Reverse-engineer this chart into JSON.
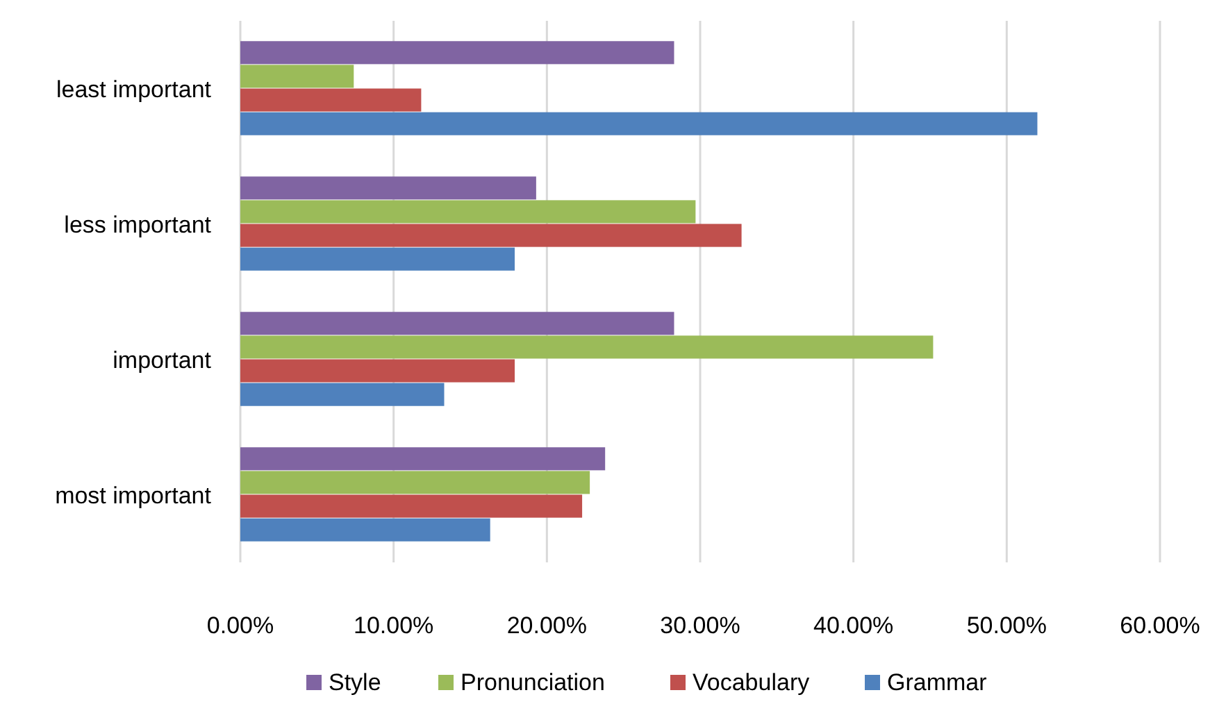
{
  "chart_data": {
    "type": "bar",
    "orientation": "horizontal",
    "categories": [
      "least important",
      "less important",
      "important",
      "most important"
    ],
    "series": [
      {
        "name": "Style",
        "color": "#8064a2",
        "values": [
          0.283,
          0.193,
          0.283,
          0.238
        ]
      },
      {
        "name": "Pronunciation",
        "color": "#9bbb59",
        "values": [
          0.074,
          0.297,
          0.452,
          0.228
        ]
      },
      {
        "name": "Vocabulary",
        "color": "#c0504d",
        "values": [
          0.118,
          0.327,
          0.179,
          0.223
        ]
      },
      {
        "name": "Grammar",
        "color": "#4f81bd",
        "values": [
          0.52,
          0.179,
          0.133,
          0.163
        ]
      }
    ],
    "xlim": [
      0,
      0.6
    ],
    "xticks": [
      {
        "value": 0,
        "label": "0.00%"
      },
      {
        "value": 0.1,
        "label": "10.00%"
      },
      {
        "value": 0.2,
        "label": "20.00%"
      },
      {
        "value": 0.3,
        "label": "30.00%"
      },
      {
        "value": 0.4,
        "label": "40.00%"
      },
      {
        "value": 0.5,
        "label": "50.00%"
      },
      {
        "value": 0.6,
        "label": "60.00%"
      }
    ],
    "grid": "x",
    "legend": "bottom"
  }
}
